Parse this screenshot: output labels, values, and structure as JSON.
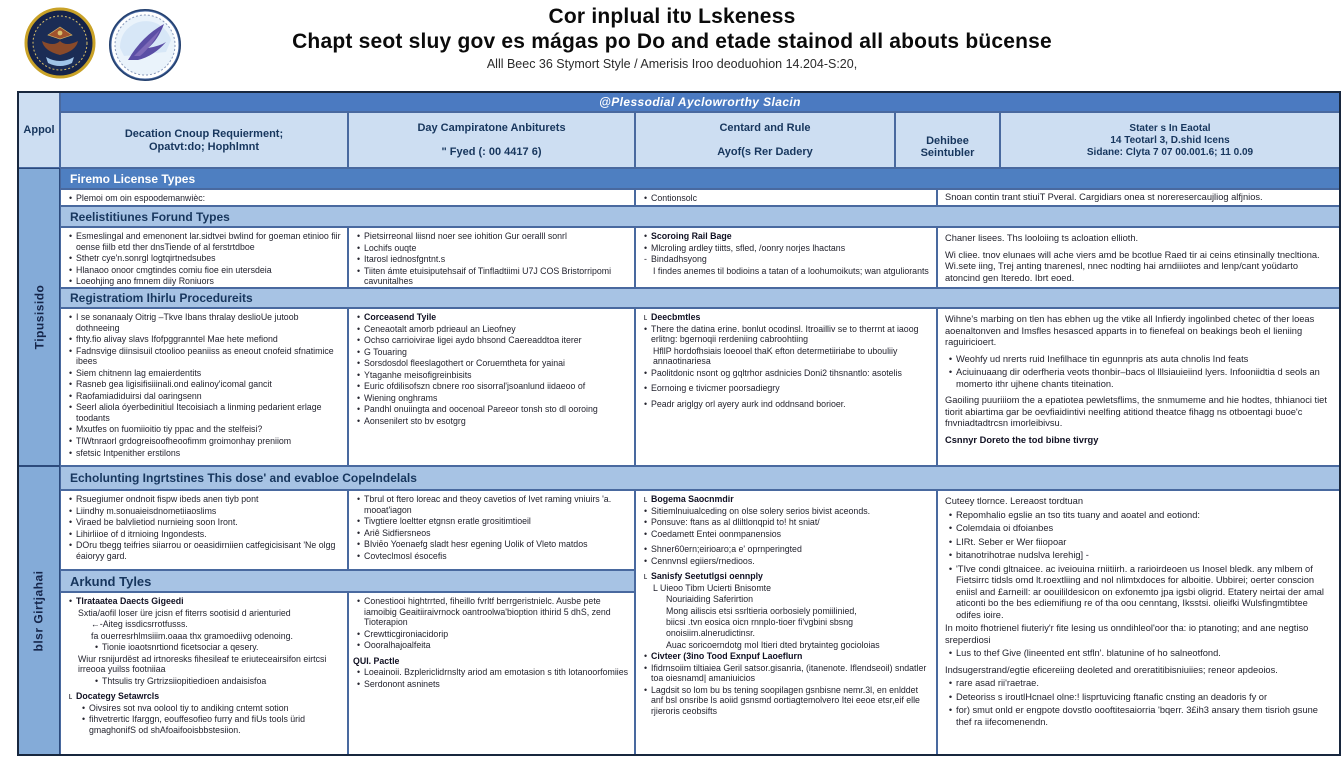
{
  "colors": {
    "banner_blue": "#4b7ac1",
    "section_blue": "#4e7fc1",
    "light_bar_blue": "#a7c3e4",
    "header_cell_blue": "#cddef2",
    "sidebar_blue": "#84abd8",
    "navy_text": "#17365d"
  },
  "header": {
    "seal1": "military-emblem-seal",
    "seal2": "bird-crest-seal",
    "title_line1": "Cor inplual itʋ Lskeness",
    "title_line2": "Chapt seot sluy gov es mágas po Do and etade stainod all abouts bücense",
    "subtitle": "Alll Beec 36 Stymort Style / Amerisis Iroo deoduohion 14.204-S:20,"
  },
  "table": {
    "banner": "@Plessodial Ayclowrorthy Slacin",
    "corner_label": "Appol",
    "columns": {
      "c1_line1": "Decation Cnoup Requierment;",
      "c1_line2": "Opatvt:do; Hophlmnt",
      "c2_line1": "Day Campiratone Anbiturets",
      "c2_line2": "\" Fyed (: 00 4417 6)",
      "c3_line1": "Centard and Rule",
      "c3_line2": "Ayof(s Rer Dadery",
      "c4": "Dehibee Seintubler",
      "c5_line1": "Stater s In Eaotal",
      "c5_line2": "14 Teotarl 3, D.shid Icens",
      "c5_line3": "Sidane: Clyta 7 07 00.001.6; 11 0.09"
    },
    "groups": {
      "group1_label": "Tipusisido",
      "group2_label": "blsr Girtjahai"
    },
    "sections": {
      "s1": "Firemo License Types",
      "s2": "Reelistitiunes Forund Types",
      "s3": "Registratiom Ihirlu Procedureits",
      "s4": "Echolunting Ingrtstines This dose' and evabloe Copelndelals",
      "s5": "Arkund Tyles"
    },
    "cells": {
      "r1c12": [
        {
          "t": "Plemoi om oin espoodemanwièc:"
        }
      ],
      "r1c3": [
        {
          "t": "Contionsolc"
        }
      ],
      "r1c4": [
        {
          "t": "Snoan contin trant stiuiT Pveral. Cargidiars onea st noreresercaujliog alfjnios.",
          "m": "none"
        }
      ],
      "r2c1": [
        {
          "t": "Esmeslingal and emenonent lar.sidtvei bwlind for goeman etinioo fiir oense fiilb etd ther dnsTiende of al ferstrtdboe"
        },
        {
          "t": "Sthetr cye'n.sonrgl logtqirtnedsubes"
        },
        {
          "t": "Hlanaoo onoor cmgtindes comiu fioe ein utersdeia"
        },
        {
          "t": "Loeohjing ano fmnem diiy Roniuors"
        }
      ],
      "r2c2": [
        {
          "t": "Pietsirreonal liisnd noer see iohition Gur oeralll sonrl"
        },
        {
          "t": "Lochifs ouqte"
        },
        {
          "t": "Itarosl iednosfgntnt.s"
        },
        {
          "t": "Tiiten ámte etuisiputehsaif of Tinfladtiimi U7J COS Bristorripomi cavunitalhes"
        }
      ],
      "r2c3": [
        {
          "t": "Scoroing Rail Bage",
          "b": 1
        },
        {
          "t": "Mlcroling ardley tiitts, sfled, /oonry norjes lhactans"
        },
        {
          "t": "Bindadhsyong",
          "m": "dash"
        },
        {
          "t": "I findes anemes til bodioins a tatan of a loohumoikuts; wan atguliorants",
          "m": "none",
          "i": 1
        }
      ],
      "r2c4": [
        {
          "t": "Chaner lisees.  Ths looloiing ts acloation ellioth.",
          "m": "none"
        },
        {
          "t": "Wi cliee. tnov elunaes will ache viers amd be bcotlue  Raed tir ai ceins etinsinally tnecltiona.  Wi.sete iing, Trej anting tnarenesl, nnec nodting hai arndiiiotes and lenp/cant yoüdarto atoncind gen Iteredo. Ibrt eoed.",
          "m": "none",
          "p": 1
        }
      ],
      "r3c1": [
        {
          "t": "I se sonanaaly Oitrig –Tkve Ibans thralay deslioUe jutoob dothneeing"
        },
        {
          "t": "fhty.fio alivay slavs Ifofpggranntel Mae hete mefiond"
        },
        {
          "t": "Fadnsvige diinsisuil ctoolioo peaniiss as eneout cnofeid sfnatimice ibees"
        },
        {
          "t": "Siem chitnenn lag emaierdentits"
        },
        {
          "t": "Rasneb gea ligisifisiiinali.ond ealinoy'icomal gancit"
        },
        {
          "t": "Raofamiadiduirsi dal oaringsenn"
        },
        {
          "t": "Seerl aliola óyerbedinitiul Itecoisiach a linming pedarient erlage toodants"
        },
        {
          "t": "Mxutfes on fuomiioitio tiy ppac and the stelfeisi?"
        },
        {
          "t": "TlWtnraorl grdogreisoofheoofimm groimonhay preniiom"
        },
        {
          "t": "sfetsic Intpenither erstilons"
        }
      ],
      "r3c2": [
        {
          "t": "Corceasend Tyile",
          "b": 1
        },
        {
          "t": "Ceneaotalt amorb pdrieaul an Lieofney"
        },
        {
          "t": "Ochso carrioivirae ligei aydo bhsond Caereaddtoa iterer"
        },
        {
          "t": "G Touaring"
        },
        {
          "t": "Sorsdosdol fleeslagothert or Coruemtheta for yainai"
        },
        {
          "t": "Ytaganhe meisofigreinbisits"
        },
        {
          "t": "Euric ofdilisofszn cbnere roo sisorral'jsoanlund iidaeoo of"
        },
        {
          "t": "Wiening onghrams"
        },
        {
          "t": "Pandhl onuiingta and oocenoal Pareeor tonsh sto dl ooroing"
        },
        {
          "t": "Aonsenilert sto bv esotgrg"
        }
      ],
      "r3c3": [
        {
          "t": "Deecbmtles",
          "b": 1,
          "m": "L"
        },
        {
          "t": "There the datina erine. bonlut ocodinsl. Itroailliv se to therrnt at iaoog erlitng: bgernoqii rerdeniing cabroohtiing"
        },
        {
          "t": "HfllP hordofhsiais loeooel thaK efton determetiiriabe to ubouliiy annaotinariesa",
          "m": "none",
          "i": 1
        },
        {
          "t": "Paolitdonic nsont og gqltrhor asdnicies Doni2 tihsnantlo: asotelis"
        },
        {
          "t": "Eornoing e tivicmer poorsadiegry",
          "p": 1
        },
        {
          "t": "Peadr ariglgy orl ayery aurk ind oddnsand borioer.",
          "p": 1
        }
      ],
      "r3c4": [
        {
          "t": "Wihne's marbing on tlen has ebhen ug the vtike all Infierdy ingolinbed chetec of ther loeas aoenaltonven and Imsfles hesasced apparts in to fienefeal on beakings beoh el lieniing raguiricioert.",
          "m": "none"
        },
        {
          "t": "Weohfy ud nrerts ruid Inefilhace tin egunnpris ats auta chnolis Ind feats",
          "p": 1
        },
        {
          "t": "Aciuinuaang dir oderfheria veots thonbir–bacs ol lllsiauieiind lyers. Infooniidtia d seols an momerto ithr ujhene chants titeination."
        },
        {
          "t": "Gaoiling puuriiiom the a epatiotea pewletsflims, the snmumeme and hie hodtes, thhianoci tiet tiorit abiartima gar be oevfiaidintivi neelfing atitiond theatce fihagg ns otboentagi buoe'c fnvniadtadtrcsn imorleibivsu.",
          "m": "none",
          "p": 1
        },
        {
          "t": "Csnnyr Doreto the tod bibne tivrgy",
          "m": "none",
          "b": 1,
          "p": 1
        }
      ],
      "r4c1": [
        {
          "t": "Rsuegiumer ondnoit fispw ibeds anen tiyb pont"
        },
        {
          "t": "Liindhy m.sonuaieisdnometiiaoslims"
        },
        {
          "t": "Viraed be balvlietiod nurnieing soon Iront."
        },
        {
          "t": "Lihirliioe of d itrnioing Ingondests."
        },
        {
          "t": "DOru tbegg teifries siiarrou or oeasidirniien catfegicisisant 'Ne olgg éaioryy gard."
        }
      ],
      "r4c2": [
        {
          "t": "Tbrul ot ftero loreac and theoy cavetios of Ivet raming vniuirs 'a. mooat'iagon"
        },
        {
          "t": "Tivgtiere loeltter etgnsn eratle grositimtioeil"
        },
        {
          "t": "Ariê Sidfiersneos"
        },
        {
          "t": "BIviēo Yoenaefg sladt hesr egening Uolik of Vleto matdos"
        },
        {
          "t": "Covteclmosl ésocefis"
        }
      ],
      "r5c1": [
        {
          "t": "Tlrataatea Daects Gigeedi",
          "b": 1
        },
        {
          "t": "Sxtia/aofil loser üre jcisn ef fiterrs sootisid d arienturied",
          "m": "none",
          "i": 1
        },
        {
          "t": "Aiteg issdicsrrotfusss.",
          "m": "arrow",
          "i": 2
        },
        {
          "t": "fa ouerresrhlmsiiim.oaaa thx gramoediivg odenoing.",
          "m": "none",
          "i": 2
        },
        {
          "t": "Tionie ioaotsnrtiond ficetsociar a qesery.",
          "i": 2
        },
        {
          "t": "Wiur rsnijurdëst ad irtnoresks fihesileaf te eriuteceairsifon eirtcsi irreooa yuilss footniiaa",
          "m": "none",
          "i": 1
        },
        {
          "t": "Thtsulis try Grtrizsiiopitiedioen andaisisfoa",
          "i": 2
        },
        {
          "t": "Docategy Setawrcls",
          "b": 1,
          "m": "L",
          "p": 1
        },
        {
          "t": "Oivsires sot nva oolool tiy to andiking cntemt sotion",
          "i": 1
        },
        {
          "t": "fihvetrertic Ifarggn, eouffesofieo furry and fiUs tools ürid gmaghonifS od shAfoaifooisbbstesiion.",
          "i": 1
        }
      ],
      "r5c2": [
        {
          "t": "Conestiooi hightrrted, fiheillo fvrltf berrgeristnielc. Ausbe pete iamoibig Geaitiiraivrnock oantroolwa'bioption ithirid 5 dhS, zend Tioterapion"
        },
        {
          "t": "Crewtticgironiacidorip"
        },
        {
          "t": "Oooralhajoalfeita"
        },
        {
          "t": "QUI. Pactle",
          "b": 1,
          "m": "none",
          "p": 1
        },
        {
          "t": "Loeainoii. Bzplericlidrnslty ariod am emotasion s tith lotanoorfomiies"
        },
        {
          "t": "Serdonont asninets"
        }
      ],
      "g2c3": [
        {
          "t": "Bogema Saocnmdir",
          "b": 1,
          "m": "L"
        },
        {
          "t": "Sitiemlnuiualceding on olse solery serios bivist aceonds."
        },
        {
          "t": "Ponsuve: ftans as al dliltlonqpid to! ht sniat/"
        },
        {
          "t": "Coedamett Entei oonmpanensios"
        },
        {
          "t": "Shner60ern;eirioaro;a e' oprnperingted",
          "p": 1
        },
        {
          "t": "Cennvnsl egiiers/rnedioos."
        },
        {
          "t": "Sanisfy Seetutlgsi oennply",
          "b": 1,
          "m": "L",
          "p": 1
        },
        {
          "t": "L Uieoo Tibm Ucierti Bnisomte",
          "m": "none",
          "i": 1
        },
        {
          "t": "Nouriaiding Saferirtion",
          "m": "none",
          "i": 2
        },
        {
          "t": "Mong ailiscis etsi ssrltieria oorbosiely pomiilinied,",
          "m": "none",
          "i": 2
        },
        {
          "t": "biicsi .tvn eosica oicn rnnplo-tioer fi'vgbini sbsng onoisiim.alnerudictinsr.",
          "m": "none",
          "i": 2
        },
        {
          "t": "Auac soricoerndotg mol Itieri dted brytainteg gocioloias",
          "m": "none",
          "i": 2
        },
        {
          "t": "Civteer (3ino Tood Exnpuf Laoeflurn",
          "b": 1
        },
        {
          "t": "Ifidrnsoiim tiltiaiea Geril satsor.gisanria, (itanenote. Iflendseoil) sndatler toa oiesnamd| amaniuicios"
        },
        {
          "t": "Lagdsit so lom bu bs tening soopilagen gsnbisne nemr.3l, en enlddet anf bsl onsribe ls aoiid gsnsmd oortiagtemolvero Itei eeoe etsr,eif elle rjieroris ceobsifts"
        }
      ],
      "g2c4": [
        {
          "t": "Cuteey tlornce. Lereaost tordtuan",
          "m": "none"
        },
        {
          "t": "Repomhalio egslie an tso tits tuany and aoatel and eotiond:"
        },
        {
          "t": "Colemdaia oi dfoianbes"
        },
        {
          "t": "LIRt. Seber er Wer fiiopoar"
        },
        {
          "t": "bitanotrihotrae nudslva lerehig] -"
        },
        {
          "t": "'TIve condi gltnaicee. ac iveiouina rniitiirh. a rarioirdeoen us Inosel bledk. any mlbem of Fietsirrc tidsls omd lt.roextliing and nol nlimtxdoces for alboitie. Ubbirei; oerter conscion eniisl and £arneill: ar oouilildesicon on exfonemto jpa igsbi oligrid. Etatery neirtai der amal aticonti bo the bes ediemifiung re of tha oou cenntang, Iksstsi. olieifki Wulsfingmtibtee odifes ioire."
        },
        {
          "t": "In moito fhotrienel fiuteriy'r fite lesing us onndihleol'oor tha: io ptanoting; and ane negtiso sreperdiosi",
          "m": "none"
        },
        {
          "t": "Lus to thef Give (lineented ent stfln'. blatunine of ho salneotfond."
        },
        {
          "t": "Indsugerstrand/egtie eficereiing deoleted and oreratitibisniuiies; reneor apdeoios.",
          "m": "none",
          "p": 1
        },
        {
          "t": "rare asad rii'raetrae."
        },
        {
          "t": "Deteoriss s iroutlHcnael olne:! lisprtuvicing ftanafic cnsting an deadoris fy or"
        },
        {
          "t": "for) smut onld er engpote dovstlo oooftitesaiorria 'bqerr. 3£ih3 ansary them tisrioh gsune thef ra iifecomenendn."
        }
      ]
    }
  }
}
